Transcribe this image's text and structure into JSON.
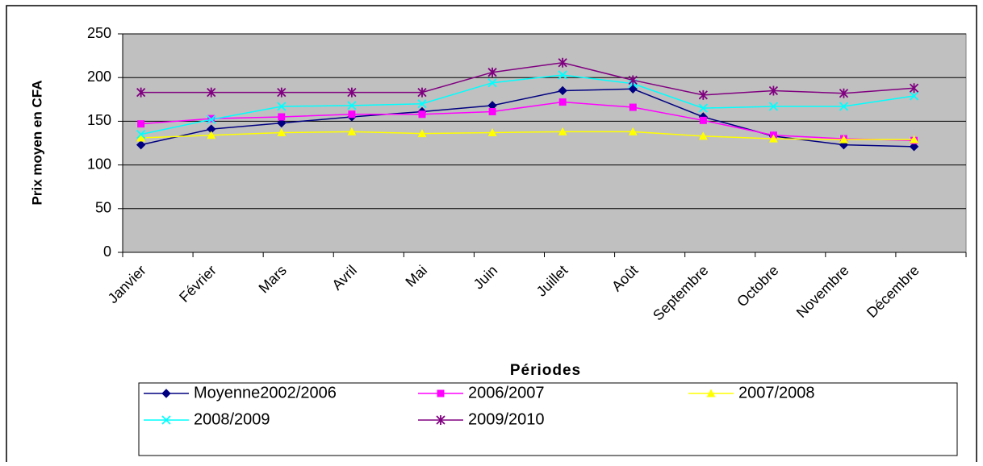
{
  "chart_data": {
    "type": "line",
    "x_label": "Périodes",
    "y_label": "Prix moyen en CFA",
    "categories": [
      "Janvier",
      "Février",
      "Mars",
      "Avril",
      "Mai",
      "Juin",
      "Juillet",
      "Août",
      "Septembre",
      "Octobre",
      "Novembre",
      "Décembre"
    ],
    "series": [
      {
        "name": "Moyenne2002/2006",
        "color": "#000080",
        "marker": "diamond",
        "values": [
          123,
          141,
          148,
          155,
          161,
          168,
          185,
          187,
          155,
          133,
          123,
          121
        ]
      },
      {
        "name": "2006/2007",
        "color": "#ff00ff",
        "marker": "square",
        "values": [
          147,
          153,
          155,
          158,
          158,
          161,
          172,
          166,
          151,
          134,
          130,
          128
        ]
      },
      {
        "name": "2007/2008",
        "color": "#ffff00",
        "marker": "triangle",
        "values": [
          131,
          134,
          137,
          138,
          136,
          137,
          138,
          138,
          133,
          130,
          129,
          129
        ]
      },
      {
        "name": "2008/2009",
        "color": "#00ffff",
        "marker": "cross",
        "values": [
          135,
          152,
          167,
          168,
          170,
          194,
          203,
          193,
          165,
          167,
          167,
          179
        ]
      },
      {
        "name": "2009/2010",
        "color": "#800080",
        "marker": "star",
        "values": [
          183,
          183,
          183,
          183,
          183,
          206,
          217,
          197,
          180,
          185,
          182,
          188
        ]
      }
    ],
    "ylim": [
      0,
      250
    ],
    "yticks": [
      0,
      50,
      100,
      150,
      200,
      250
    ],
    "grid": true,
    "legend": "bottom"
  }
}
